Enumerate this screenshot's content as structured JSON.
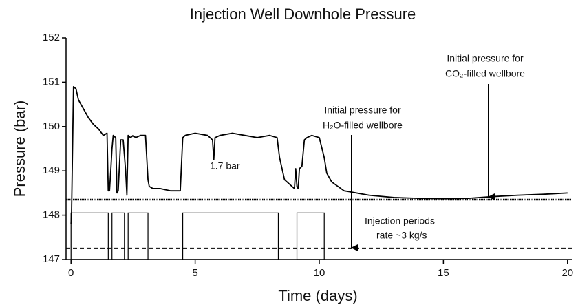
{
  "chart_data": {
    "type": "line",
    "title": "Injection Well Downhole Pressure",
    "x_label": "Time (days)",
    "y_label": "Pressure (bar)",
    "xlim": [
      -0.2,
      20.2
    ],
    "ylim": [
      147,
      152
    ],
    "xticks": [
      0,
      5,
      10,
      15,
      20
    ],
    "yticks": [
      147,
      148,
      149,
      150,
      151,
      152
    ],
    "color": "#000000",
    "x": [
      0,
      0.02,
      0.1,
      0.2,
      0.3,
      0.5,
      0.7,
      0.9,
      1.1,
      1.3,
      1.45,
      1.5,
      1.55,
      1.6,
      1.65,
      1.7,
      1.8,
      1.85,
      1.9,
      2.0,
      2.1,
      2.2,
      2.25,
      2.3,
      2.4,
      2.5,
      2.6,
      2.8,
      3.0,
      3.1,
      3.15,
      3.3,
      3.6,
      4.0,
      4.4,
      4.5,
      4.6,
      5.0,
      5.5,
      5.7,
      5.75,
      5.8,
      6.0,
      6.5,
      7.0,
      7.5,
      8.0,
      8.3,
      8.4,
      8.6,
      8.9,
      9.0,
      9.05,
      9.1,
      9.15,
      9.2,
      9.3,
      9.4,
      9.5,
      9.7,
      10.0,
      10.2,
      10.3,
      10.5,
      11,
      12,
      13,
      14,
      15,
      16,
      17,
      18,
      19,
      20
    ],
    "values": [
      147.8,
      148.0,
      150.9,
      150.85,
      150.6,
      150.4,
      150.2,
      150.05,
      149.95,
      149.8,
      149.85,
      148.55,
      148.55,
      149.0,
      149.5,
      149.8,
      149.75,
      148.5,
      148.55,
      149.7,
      149.7,
      149.0,
      148.45,
      149.8,
      149.75,
      149.8,
      149.75,
      149.8,
      149.8,
      148.8,
      148.65,
      148.6,
      148.6,
      148.55,
      148.55,
      149.75,
      149.8,
      149.85,
      149.8,
      149.7,
      149.25,
      149.75,
      149.8,
      149.85,
      149.8,
      149.75,
      149.8,
      149.75,
      149.3,
      148.8,
      148.65,
      148.6,
      149.05,
      148.65,
      148.6,
      149.05,
      149.1,
      149.7,
      149.75,
      149.8,
      149.75,
      149.3,
      148.95,
      148.75,
      148.55,
      148.45,
      148.4,
      148.38,
      148.37,
      148.38,
      148.42,
      148.45,
      148.47,
      148.5
    ],
    "injection_periods": {
      "start": [
        0,
        1.65,
        2.3,
        4.5,
        9.1
      ],
      "end": [
        1.5,
        2.15,
        3.1,
        8.35,
        10.2
      ],
      "values": [
        148.05,
        148.05,
        148.05,
        148.05,
        148.05
      ]
    },
    "reference_lines": [
      {
        "value": 148.35,
        "style": "dotted"
      },
      {
        "value": 147.25,
        "style": "dashed"
      }
    ],
    "annotations": {
      "co2": [
        "Initial pressure for",
        "CO₂-filled wellbore"
      ],
      "h2o": [
        "Initial pressure for",
        "H₂O-filled wellbore"
      ],
      "injection": [
        "Injection periods",
        "rate ~3 kg/s"
      ],
      "drop": "1.7 bar"
    }
  }
}
